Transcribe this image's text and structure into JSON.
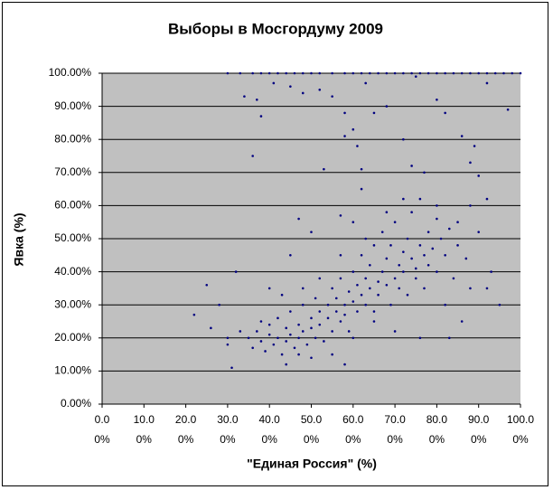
{
  "chart_data": {
    "type": "scatter",
    "title": "Выборы в Мосгордуму 2009",
    "xlabel": "\"Единая Россия\" (%)",
    "ylabel": "Явка (%)",
    "color": "#000080",
    "grid": true,
    "xlim": [
      0,
      100
    ],
    "ylim": [
      0,
      100
    ],
    "xticks": [
      {
        "value": 0,
        "label": "0.00%"
      },
      {
        "value": 10,
        "label": "10.00%"
      },
      {
        "value": 20,
        "label": "20.00%"
      },
      {
        "value": 30,
        "label": "30.00%"
      },
      {
        "value": 40,
        "label": "40.00%"
      },
      {
        "value": 50,
        "label": "50.00%"
      },
      {
        "value": 60,
        "label": "60.00%"
      },
      {
        "value": 70,
        "label": "70.00%"
      },
      {
        "value": 80,
        "label": "80.00%"
      },
      {
        "value": 90,
        "label": "90.00%"
      },
      {
        "value": 100,
        "label": "100.00%"
      }
    ],
    "yticks": [
      {
        "value": 0,
        "label": "0.00%"
      },
      {
        "value": 10,
        "label": "10.00%"
      },
      {
        "value": 20,
        "label": "20.00%"
      },
      {
        "value": 30,
        "label": "30.00%"
      },
      {
        "value": 40,
        "label": "40.00%"
      },
      {
        "value": 50,
        "label": "50.00%"
      },
      {
        "value": 60,
        "label": "60.00%"
      },
      {
        "value": 70,
        "label": "70.00%"
      },
      {
        "value": 80,
        "label": "80.00%"
      },
      {
        "value": 90,
        "label": "90.00%"
      },
      {
        "value": 100,
        "label": "100.00%"
      }
    ],
    "x": [
      30,
      33,
      36,
      38,
      40,
      42,
      44,
      46,
      48,
      50,
      52,
      55,
      58,
      60,
      62,
      64,
      66,
      68,
      70,
      72,
      74,
      76,
      78,
      80,
      82,
      84,
      86,
      88,
      90,
      92,
      94,
      96,
      98,
      100,
      34,
      37,
      38,
      41,
      45,
      48,
      52,
      55,
      58,
      58,
      60,
      61,
      63,
      65,
      68,
      72,
      75,
      80,
      82,
      86,
      89,
      92,
      97,
      36,
      62,
      53,
      74,
      77,
      88,
      90,
      92,
      62,
      47,
      50,
      57,
      60,
      45,
      40,
      32,
      28,
      25,
      22,
      26,
      30,
      31,
      58,
      44,
      93,
      95,
      92,
      85,
      88,
      35,
      36,
      37,
      38,
      39,
      40,
      40,
      41,
      42,
      42,
      43,
      44,
      44,
      45,
      45,
      46,
      47,
      47,
      48,
      48,
      49,
      50,
      50,
      51,
      51,
      52,
      52,
      53,
      54,
      54,
      55,
      55,
      56,
      56,
      57,
      57,
      58,
      58,
      59,
      59,
      60,
      60,
      61,
      61,
      62,
      62,
      63,
      63,
      64,
      64,
      65,
      65,
      66,
      66,
      67,
      67,
      68,
      68,
      69,
      69,
      70,
      70,
      71,
      71,
      72,
      72,
      73,
      73,
      74,
      74,
      75,
      75,
      76,
      76,
      77,
      77,
      78,
      78,
      79,
      80,
      80,
      81,
      82,
      82,
      83,
      84,
      85,
      86,
      87,
      88,
      83,
      76,
      70,
      90,
      65,
      60,
      55,
      50,
      47,
      80,
      72,
      68,
      63,
      57,
      52,
      48,
      43,
      38,
      33,
      30
    ],
    "y": [
      100,
      100,
      100,
      100,
      100,
      100,
      100,
      100,
      100,
      100,
      100,
      100,
      100,
      100,
      100,
      100,
      100,
      100,
      100,
      100,
      100,
      100,
      100,
      100,
      100,
      100,
      100,
      100,
      100,
      100,
      100,
      100,
      100,
      100,
      93,
      92,
      87,
      97,
      96,
      94,
      95,
      93,
      81,
      88,
      83,
      78,
      97,
      88,
      90,
      80,
      99,
      92,
      88,
      81,
      78,
      97,
      89,
      75,
      71,
      71,
      72,
      70,
      73,
      69,
      62,
      65,
      56,
      52,
      57,
      55,
      45,
      35,
      40,
      30,
      36,
      27,
      23,
      20,
      11,
      12,
      12,
      40,
      30,
      35,
      55,
      60,
      20,
      17,
      22,
      19,
      16,
      21,
      24,
      18,
      20,
      26,
      15,
      23,
      19,
      28,
      21,
      17,
      24,
      20,
      30,
      22,
      18,
      26,
      23,
      32,
      20,
      28,
      24,
      19,
      30,
      26,
      35,
      22,
      28,
      32,
      25,
      38,
      30,
      27,
      34,
      22,
      40,
      31,
      28,
      36,
      33,
      45,
      30,
      38,
      42,
      35,
      28,
      48,
      37,
      33,
      40,
      52,
      36,
      44,
      30,
      48,
      38,
      55,
      42,
      35,
      46,
      40,
      50,
      33,
      44,
      58,
      41,
      38,
      48,
      62,
      45,
      35,
      52,
      42,
      47,
      56,
      40,
      50,
      45,
      30,
      53,
      38,
      48,
      25,
      44,
      35,
      20,
      20,
      22,
      52,
      25,
      20,
      15,
      14,
      15,
      60,
      62,
      58,
      50,
      45,
      38,
      35,
      33,
      25,
      22,
      18
    ]
  }
}
